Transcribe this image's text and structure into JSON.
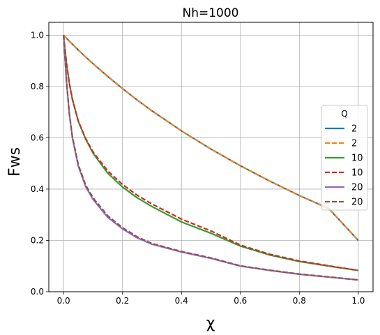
{
  "chart_data": {
    "type": "line",
    "title": "Nh=1000",
    "xlabel": "χ",
    "ylabel": "Fws",
    "xlim": [
      -0.05,
      1.05
    ],
    "ylim": [
      0.0,
      1.05
    ],
    "xticks": [
      0.0,
      0.2,
      0.4,
      0.6,
      0.8,
      1.0
    ],
    "xtick_labels": [
      "0.0",
      "0.2",
      "0.4",
      "0.6",
      "0.8",
      "1.0"
    ],
    "yticks": [
      0.0,
      0.2,
      0.4,
      0.6,
      0.8,
      1.0
    ],
    "ytick_labels": [
      "0.0",
      "0.2",
      "0.4",
      "0.6",
      "0.8",
      "1.0"
    ],
    "grid": true,
    "legend": {
      "title": "Q",
      "placement": "right"
    },
    "x": [
      0.0,
      0.01,
      0.02,
      0.03,
      0.05,
      0.075,
      0.1,
      0.15,
      0.2,
      0.25,
      0.3,
      0.4,
      0.5,
      0.6,
      0.7,
      0.8,
      0.9,
      1.0
    ],
    "series": [
      {
        "name": "2",
        "color": "#1f77b4",
        "dash": "solid",
        "values": [
          1.0,
          0.988,
          0.976,
          0.965,
          0.942,
          0.915,
          0.889,
          0.839,
          0.792,
          0.747,
          0.705,
          0.627,
          0.556,
          0.491,
          0.431,
          0.375,
          0.324,
          0.2
        ]
      },
      {
        "name": "2",
        "color": "#ff7f0e",
        "dash": "dashed",
        "values": [
          1.0,
          0.988,
          0.976,
          0.965,
          0.942,
          0.915,
          0.889,
          0.839,
          0.792,
          0.747,
          0.705,
          0.627,
          0.556,
          0.491,
          0.431,
          0.375,
          0.324,
          0.2
        ]
      },
      {
        "name": "10",
        "color": "#2ca02c",
        "dash": "solid",
        "values": [
          1.0,
          0.89,
          0.81,
          0.75,
          0.665,
          0.595,
          0.54,
          0.462,
          0.408,
          0.366,
          0.332,
          0.272,
          0.228,
          0.178,
          0.143,
          0.118,
          0.1,
          0.083
        ]
      },
      {
        "name": "10",
        "color": "#d62728",
        "dash": "dashed",
        "values": [
          1.0,
          0.89,
          0.81,
          0.75,
          0.665,
          0.597,
          0.545,
          0.471,
          0.418,
          0.376,
          0.342,
          0.283,
          0.237,
          0.182,
          0.146,
          0.12,
          0.101,
          0.083
        ]
      },
      {
        "name": "20",
        "color": "#9467bd",
        "dash": "solid",
        "values": [
          1.0,
          0.82,
          0.69,
          0.6,
          0.49,
          0.41,
          0.36,
          0.29,
          0.245,
          0.21,
          0.185,
          0.155,
          0.13,
          0.1,
          0.083,
          0.068,
          0.057,
          0.046
        ]
      },
      {
        "name": "20",
        "color": "#8c564b",
        "dash": "dashed",
        "values": [
          1.0,
          0.82,
          0.69,
          0.605,
          0.495,
          0.416,
          0.366,
          0.296,
          0.25,
          0.214,
          0.188,
          0.157,
          0.132,
          0.101,
          0.084,
          0.069,
          0.058,
          0.046
        ]
      }
    ]
  }
}
